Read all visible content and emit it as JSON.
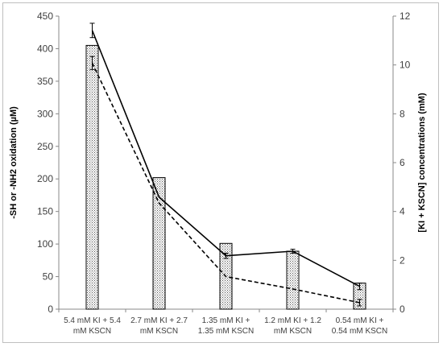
{
  "chart_data": {
    "type": "bar",
    "categories": [
      [
        "5.4 mM KI + 5.4",
        "mM KSCN"
      ],
      [
        "2.7 mM KI + 2.7",
        "mM KSCN"
      ],
      [
        "1.35 mM KI +",
        "1.35 mM KSCN"
      ],
      [
        "1.2 mM KI + 1.2",
        "mM KSCN"
      ],
      [
        "0.54 mM KI +",
        "0.54 mM KSCN"
      ]
    ],
    "ylabel": "-SH or -NH2 oxidation (µM)",
    "y2label": "[KI + KSCN] concentrations (mM)",
    "ylim": [
      0,
      450
    ],
    "yticks": [
      0,
      50,
      100,
      150,
      200,
      250,
      300,
      350,
      400,
      450
    ],
    "y2lim": [
      0,
      12
    ],
    "y2ticks": [
      0,
      2,
      4,
      6,
      8,
      10,
      12
    ],
    "grid": false,
    "series": [
      {
        "kind": "bar",
        "axis": "left",
        "values": [
          405,
          202,
          101,
          89,
          40
        ],
        "pattern": "dotted",
        "error": [
          0,
          0,
          0,
          0,
          0
        ]
      },
      {
        "kind": "line",
        "style": "solid",
        "axis": "left",
        "values": [
          428,
          172,
          82,
          89,
          35
        ],
        "error": [
          11,
          0,
          4,
          3,
          5
        ]
      },
      {
        "kind": "line",
        "style": "dashed",
        "axis": "left",
        "values": [
          378,
          163,
          50,
          31,
          10
        ],
        "error": [
          10,
          0,
          0,
          0,
          5
        ]
      }
    ],
    "colors": {
      "bar_fill": "#ffffff",
      "bar_dots": "#555555",
      "line": "#000000",
      "axis": "#888888"
    }
  }
}
